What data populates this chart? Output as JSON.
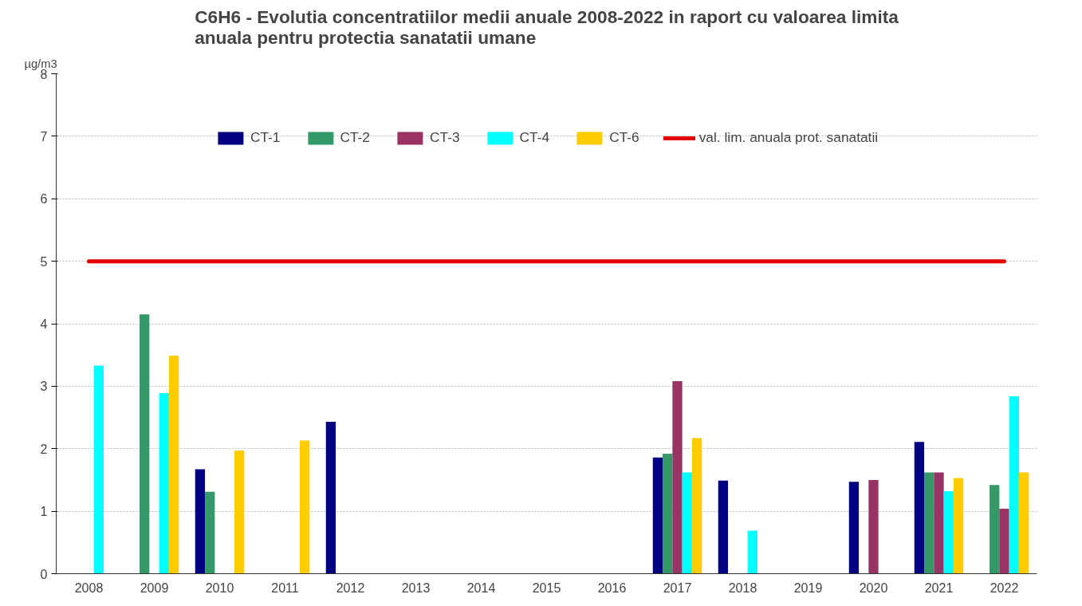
{
  "chart_data": {
    "type": "bar",
    "title": "C6H6 - Evolutia concentratiilor medii anuale 2008-2022 in raport cu valoarea limita\nanuala pentru protectia sanatatii umane",
    "ylabel": "µg/m3",
    "categories": [
      "2008",
      "2009",
      "2010",
      "2011",
      "2012",
      "2013",
      "2014",
      "2015",
      "2016",
      "2017",
      "2018",
      "2019",
      "2020",
      "2021",
      "2022"
    ],
    "series": [
      {
        "name": "CT-1",
        "color": "#000080",
        "values": [
          null,
          null,
          1.67,
          null,
          2.43,
          null,
          null,
          null,
          null,
          1.86,
          1.49,
          null,
          1.47,
          2.11,
          null
        ]
      },
      {
        "name": "CT-2",
        "color": "#339966",
        "values": [
          null,
          4.15,
          1.31,
          null,
          null,
          null,
          null,
          null,
          null,
          1.92,
          null,
          null,
          null,
          1.62,
          1.42
        ]
      },
      {
        "name": "CT-3",
        "color": "#993366",
        "values": [
          null,
          null,
          null,
          null,
          null,
          null,
          null,
          null,
          null,
          3.08,
          null,
          null,
          1.5,
          1.62,
          1.04
        ]
      },
      {
        "name": "CT-4",
        "color": "#00ffff",
        "values": [
          3.33,
          2.89,
          null,
          null,
          null,
          null,
          null,
          null,
          null,
          1.62,
          0.69,
          null,
          null,
          1.32,
          2.84
        ]
      },
      {
        "name": "CT-6",
        "color": "#ffcc00",
        "values": [
          null,
          3.49,
          1.97,
          2.13,
          null,
          null,
          null,
          null,
          null,
          2.17,
          null,
          null,
          null,
          1.53,
          1.62
        ]
      },
      {
        "name": "val. lim. anuala prot. sanatatii",
        "type": "line",
        "color": "#e60000",
        "values": [
          5,
          5,
          5,
          5,
          5,
          5,
          5,
          5,
          5,
          5,
          5,
          5,
          5,
          5,
          5
        ]
      }
    ],
    "ylim": [
      0,
      8
    ],
    "yticks": [
      0,
      1,
      2,
      3,
      4,
      5,
      6,
      7,
      8
    ],
    "grid": "y",
    "legend": "top"
  }
}
